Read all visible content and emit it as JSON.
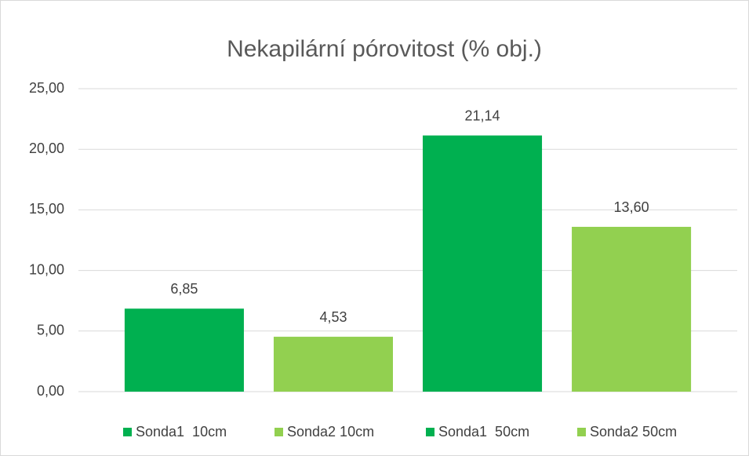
{
  "chart_data": {
    "type": "bar",
    "title": "Nekapilární pórovitost (% obj.)",
    "categories": [
      null
    ],
    "series": [
      {
        "name": "Sonda1  10cm",
        "color": "#00b050",
        "values": [
          6.85
        ],
        "value_labels": [
          "6,85"
        ]
      },
      {
        "name": "Sonda2 10cm",
        "color": "#92d050",
        "values": [
          4.53
        ],
        "value_labels": [
          "4,53"
        ]
      },
      {
        "name": "Sonda1  50cm",
        "color": "#00b050",
        "values": [
          21.14
        ],
        "value_labels": [
          "21,14"
        ]
      },
      {
        "name": "Sonda2 50cm",
        "color": "#92d050",
        "values": [
          13.6
        ],
        "value_labels": [
          "13,60"
        ]
      }
    ],
    "ylim": [
      0,
      25
    ],
    "yticks": [
      {
        "value": 0,
        "label": "0,00"
      },
      {
        "value": 5,
        "label": "5,00"
      },
      {
        "value": 10,
        "label": "10,00"
      },
      {
        "value": 15,
        "label": "15,00"
      },
      {
        "value": 20,
        "label": "20,00"
      },
      {
        "value": 25,
        "label": "25,00"
      }
    ],
    "grid": true,
    "legend": "bottom"
  }
}
